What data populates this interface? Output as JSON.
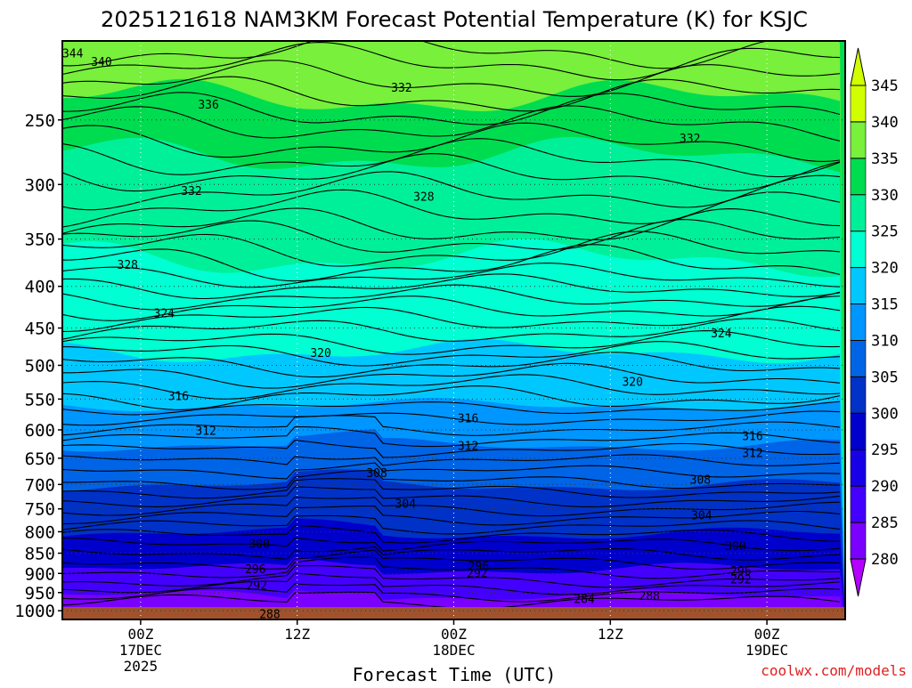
{
  "chart_data": {
    "type": "heatmap",
    "title": "2025121618 NAM3KM Forecast Potential Temperature (K) for KSJC",
    "xlabel": "Forecast Time (UTC)",
    "ylabel": "",
    "credit": "coolwx.com/models",
    "units": "K",
    "x_range_hours": [
      -6,
      54
    ],
    "x_ticks": [
      {
        "hour": 0,
        "label": "00Z",
        "date": "17DEC",
        "year": "2025"
      },
      {
        "hour": 12,
        "label": "12Z",
        "date": "",
        "year": ""
      },
      {
        "hour": 24,
        "label": "00Z",
        "date": "18DEC",
        "year": ""
      },
      {
        "hour": 36,
        "label": "12Z",
        "date": "",
        "year": ""
      },
      {
        "hour": 48,
        "label": "00Z",
        "date": "19DEC",
        "year": ""
      }
    ],
    "y_axis": {
      "type": "pressure_log",
      "range_hpa": [
        200,
        1025
      ],
      "inverted": true
    },
    "y_ticks": [
      250,
      300,
      350,
      400,
      450,
      500,
      550,
      600,
      650,
      700,
      750,
      800,
      850,
      900,
      950,
      1000
    ],
    "colorbar": {
      "levels": [
        280,
        285,
        290,
        295,
        300,
        305,
        310,
        315,
        320,
        325,
        330,
        335,
        340,
        345
      ],
      "colors": [
        "#b400ff",
        "#7a00ff",
        "#4400ff",
        "#1800e6",
        "#0000cc",
        "#0032c8",
        "#0064e6",
        "#0096ff",
        "#00c8ff",
        "#00ffd2",
        "#00f09a",
        "#00dc50",
        "#78f03c",
        "#d2ff00"
      ]
    },
    "isentrope_labels": [
      {
        "value": 344,
        "hour": -5.2,
        "hpa": 207
      },
      {
        "value": 340,
        "hour": -3.0,
        "hpa": 212
      },
      {
        "value": 336,
        "hour": 5.2,
        "hpa": 239
      },
      {
        "value": 332,
        "hour": 3.9,
        "hpa": 305
      },
      {
        "value": 328,
        "hour": -1.0,
        "hpa": 376
      },
      {
        "value": 324,
        "hour": 1.8,
        "hpa": 431
      },
      {
        "value": 320,
        "hour": 13.8,
        "hpa": 482
      },
      {
        "value": 316,
        "hour": 2.9,
        "hpa": 545
      },
      {
        "value": 312,
        "hour": 5.0,
        "hpa": 601
      },
      {
        "value": 308,
        "hour": 18.1,
        "hpa": 677
      },
      {
        "value": 304,
        "hour": 20.3,
        "hpa": 738
      },
      {
        "value": 300,
        "hour": 9.1,
        "hpa": 827
      },
      {
        "value": 296,
        "hour": 8.8,
        "hpa": 888
      },
      {
        "value": 292,
        "hour": 8.9,
        "hpa": 931
      },
      {
        "value": 288,
        "hour": 9.9,
        "hpa": 1009
      },
      {
        "value": 332,
        "hour": 20.0,
        "hpa": 228
      },
      {
        "value": 328,
        "hour": 21.7,
        "hpa": 310
      },
      {
        "value": 316,
        "hour": 25.1,
        "hpa": 580
      },
      {
        "value": 312,
        "hour": 25.1,
        "hpa": 627
      },
      {
        "value": 296,
        "hour": 25.9,
        "hpa": 880
      },
      {
        "value": 292,
        "hour": 25.8,
        "hpa": 898
      },
      {
        "value": 332,
        "hour": 42.1,
        "hpa": 263
      },
      {
        "value": 324,
        "hour": 44.5,
        "hpa": 456
      },
      {
        "value": 320,
        "hour": 37.7,
        "hpa": 523
      },
      {
        "value": 316,
        "hour": 46.9,
        "hpa": 610
      },
      {
        "value": 312,
        "hour": 46.9,
        "hpa": 640
      },
      {
        "value": 308,
        "hour": 42.9,
        "hpa": 690
      },
      {
        "value": 304,
        "hour": 43.0,
        "hpa": 763
      },
      {
        "value": 300,
        "hour": 45.6,
        "hpa": 832
      },
      {
        "value": 296,
        "hour": 46.0,
        "hpa": 893
      },
      {
        "value": 292,
        "hour": 46.0,
        "hpa": 914
      },
      {
        "value": 288,
        "hour": 39.0,
        "hpa": 958
      },
      {
        "value": 284,
        "hour": 34.0,
        "hpa": 966
      }
    ]
  }
}
